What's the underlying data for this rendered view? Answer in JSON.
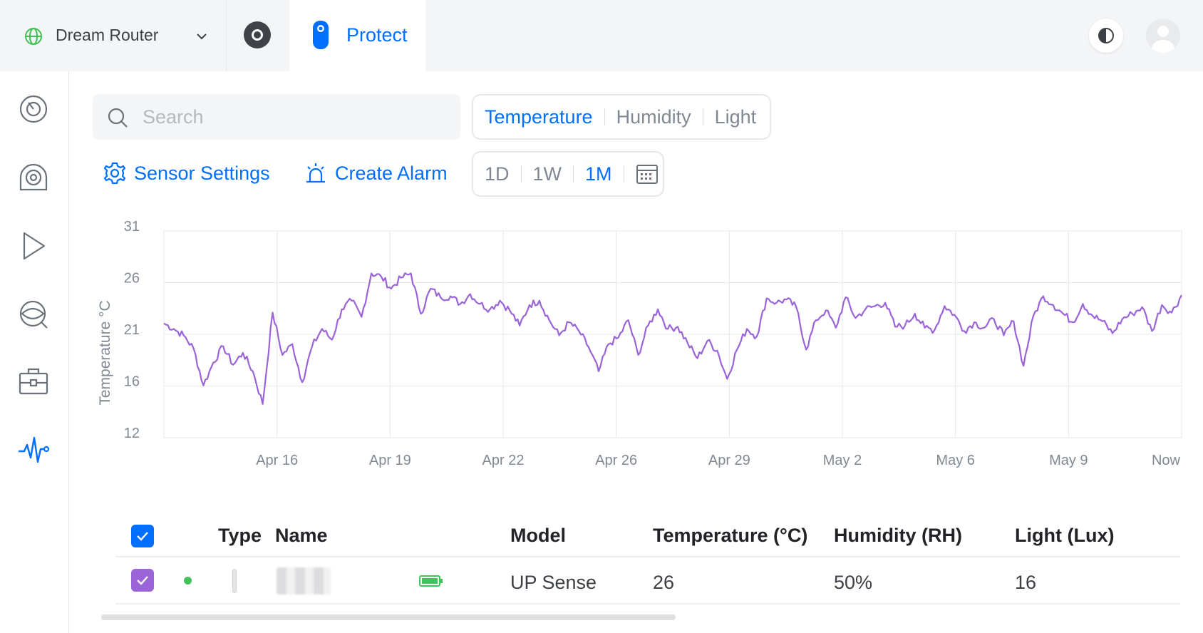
{
  "topbar": {
    "site_name": "Dream Router",
    "active_app": "Protect",
    "icons": [
      "globe-icon",
      "chevron-down-icon",
      "unifi-os-icon",
      "protect-camera-icon",
      "theme-toggle-icon",
      "user-avatar-icon"
    ]
  },
  "sidenav": {
    "items": [
      {
        "name": "dashboard",
        "icon": "dashboard-gauge-icon"
      },
      {
        "name": "devices",
        "icon": "camera-devices-icon"
      },
      {
        "name": "recordings",
        "icon": "play-icon"
      },
      {
        "name": "detections",
        "icon": "eye-search-icon"
      },
      {
        "name": "integrations",
        "icon": "briefcase-icon"
      },
      {
        "name": "sensors",
        "icon": "pulse-icon",
        "active": true
      }
    ]
  },
  "search": {
    "placeholder": "Search",
    "value": ""
  },
  "metric_tabs": [
    {
      "label": "Temperature",
      "active": true
    },
    {
      "label": "Humidity",
      "active": false
    },
    {
      "label": "Light",
      "active": false
    }
  ],
  "actions": {
    "sensor_settings": "Sensor Settings",
    "create_alarm": "Create Alarm"
  },
  "range_tabs": [
    {
      "label": "1D",
      "active": false
    },
    {
      "label": "1W",
      "active": false
    },
    {
      "label": "1M",
      "active": true
    }
  ],
  "colors": {
    "accent": "#006fff",
    "series": "#9a63d8",
    "status_online": "#43c25c",
    "selected_checkbox": "#9a63d8"
  },
  "chart_data": {
    "type": "line",
    "ylabel": "Temperature °C",
    "yticks": [
      31,
      26,
      21,
      16,
      12
    ],
    "ylim": [
      12,
      31
    ],
    "xticks": [
      "Apr 16",
      "Apr 19",
      "Apr 22",
      "Apr 26",
      "Apr 29",
      "May 2",
      "May 6",
      "May 9",
      "Now"
    ],
    "xlim": [
      "Apr 13",
      "Now"
    ],
    "grid": true,
    "series": [
      {
        "values": [
          22.5,
          22.0,
          21.4,
          20.2,
          16.8,
          18.9,
          20.4,
          18.7,
          19.8,
          18.1,
          15.1,
          23.5,
          19.6,
          20.6,
          17.1,
          20.4,
          22.0,
          21.0,
          23.8,
          24.6,
          23.1,
          27.1,
          26.8,
          25.7,
          26.7,
          27.1,
          23.4,
          25.7,
          24.9,
          25.0,
          24.3,
          25.2,
          24.3,
          23.8,
          24.6,
          23.7,
          22.3,
          24.2,
          24.6,
          22.8,
          21.4,
          22.6,
          21.8,
          20.3,
          18.1,
          20.6,
          21.2,
          22.8,
          19.6,
          22.3,
          23.8,
          22.0,
          22.2,
          20.7,
          19.3,
          20.9,
          20.0,
          17.4,
          20.1,
          22.0,
          21.3,
          24.8,
          24.4,
          24.7,
          24.0,
          20.1,
          22.8,
          23.7,
          22.1,
          24.9,
          23.0,
          23.8,
          24.1,
          24.4,
          22.2,
          22.3,
          23.4,
          22.1,
          21.9,
          24.1,
          23.3,
          21.8,
          22.6,
          22.1,
          22.9,
          21.4,
          22.7,
          18.6,
          23.2,
          25.0,
          24.2,
          23.4,
          22.6,
          24.3,
          23.2,
          22.7,
          21.6,
          22.9,
          23.4,
          24.0,
          21.8,
          24.2,
          23.5,
          25.1
        ]
      }
    ]
  },
  "table": {
    "columns": [
      "Type",
      "Name",
      "Model",
      "Temperature (°C)",
      "Humidity (RH)",
      "Light (Lux)"
    ],
    "rows": [
      {
        "status": "online",
        "name": "",
        "battery": "full",
        "model": "UP Sense",
        "temperature": "26",
        "humidity": "50%",
        "light": "16"
      }
    ]
  }
}
